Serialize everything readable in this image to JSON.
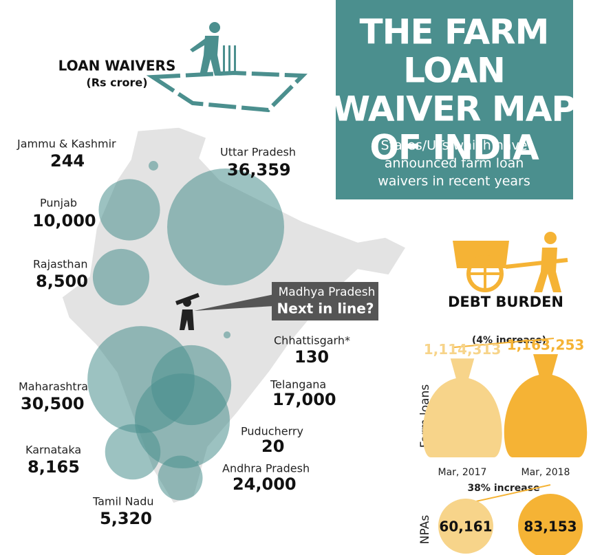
{
  "title_lines": [
    "THE FARM",
    "LOAN",
    "WAIVER MAP",
    "OF INDIA"
  ],
  "subtitle_lines": [
    "States/UTs which have",
    "announced farm loan",
    "waivers in recent years"
  ],
  "legend": {
    "title": "LOAN WAIVERS",
    "unit": "(Rs crore)"
  },
  "states": [
    {
      "name": "Jammu & Kashmir",
      "value": 244,
      "value_label": "244"
    },
    {
      "name": "Uttar Pradesh",
      "value": 36359,
      "value_label": "36,359"
    },
    {
      "name": "Punjab",
      "value": 10000,
      "value_label": "10,000"
    },
    {
      "name": "Rajasthan",
      "value": 8500,
      "value_label": "8,500"
    },
    {
      "name": "Chhattisgarh*",
      "value": 130,
      "value_label": "130"
    },
    {
      "name": "Maharashtra",
      "value": 30500,
      "value_label": "30,500"
    },
    {
      "name": "Telangana",
      "value": 17000,
      "value_label": "17,000"
    },
    {
      "name": "Puducherry",
      "value": 20,
      "value_label": "20"
    },
    {
      "name": "Karnataka",
      "value": 8165,
      "value_label": "8,165"
    },
    {
      "name": "Andhra Pradesh",
      "value": 24000,
      "value_label": "24,000"
    },
    {
      "name": "Tamil Nadu",
      "value": 5320,
      "value_label": "5,320"
    }
  ],
  "callout": {
    "state": "Madhya Pradesh",
    "text": "Next in line?"
  },
  "debt_burden": {
    "title": "DEBT BURDEN",
    "farm_loans": {
      "label": "Farm loans",
      "change": "(4% increase)",
      "categories": [
        "Mar, 2017",
        "Mar, 2018"
      ],
      "values": [
        1114313,
        1163253
      ],
      "value_labels": [
        "1,114,313",
        "1,163,253"
      ]
    },
    "npas": {
      "label": "NPAs",
      "change": "38% increase",
      "values": [
        60161,
        83153
      ],
      "value_labels": [
        "60,161",
        "83,153"
      ]
    }
  }
}
